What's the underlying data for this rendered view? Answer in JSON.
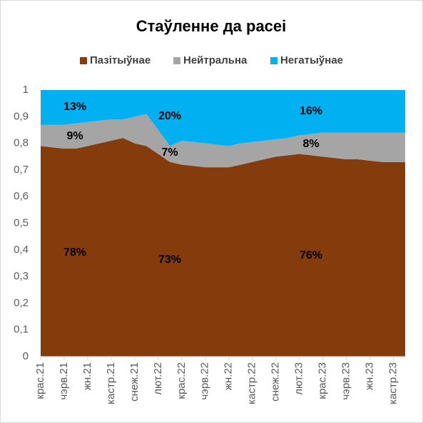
{
  "chart_data": {
    "type": "area",
    "stacked": true,
    "title": "Стаўленне да расеі",
    "categories": [
      "крас.21",
      null,
      "чэрв.21",
      null,
      "жн.21",
      null,
      "кастр.21",
      null,
      "снеж.21",
      null,
      "лют.22",
      null,
      "крас.22",
      null,
      "чэрв.22",
      null,
      "жн.22",
      null,
      "кастр.22",
      null,
      "снеж.22",
      null,
      "лют.23",
      null,
      "крас.23",
      null,
      "чэрв.23",
      null,
      "жн.23",
      null,
      "кастр.23",
      null
    ],
    "series": [
      {
        "name": "Пазітыўнае",
        "color": "#843c0c",
        "values": [
          0.79,
          0.785,
          0.78,
          0.78,
          0.79,
          0.8,
          0.81,
          0.82,
          0.8,
          0.79,
          0.76,
          0.73,
          0.72,
          0.715,
          0.71,
          0.71,
          0.71,
          0.72,
          0.73,
          0.74,
          0.75,
          0.755,
          0.76,
          0.755,
          0.75,
          0.745,
          0.74,
          0.74,
          0.735,
          0.73,
          0.73,
          0.73
        ]
      },
      {
        "name": "Нейтральна",
        "color": "#a5a5a5",
        "values": [
          0.08,
          0.085,
          0.09,
          0.095,
          0.09,
          0.085,
          0.08,
          0.07,
          0.1,
          0.12,
          0.09,
          0.06,
          0.09,
          0.09,
          0.09,
          0.085,
          0.08,
          0.08,
          0.075,
          0.07,
          0.065,
          0.065,
          0.07,
          0.08,
          0.09,
          0.095,
          0.1,
          0.1,
          0.105,
          0.11,
          0.11,
          0.11
        ]
      },
      {
        "name": "Негатыўнае",
        "color": "#00b0f0",
        "values": [
          0.13,
          0.13,
          0.13,
          0.125,
          0.12,
          0.115,
          0.11,
          0.11,
          0.1,
          0.09,
          0.15,
          0.21,
          0.19,
          0.195,
          0.2,
          0.205,
          0.21,
          0.2,
          0.195,
          0.19,
          0.185,
          0.18,
          0.17,
          0.165,
          0.16,
          0.16,
          0.16,
          0.16,
          0.16,
          0.16,
          0.16,
          0.16
        ]
      }
    ],
    "annotations": [
      {
        "text": "13%"
      },
      {
        "text": "9%"
      },
      {
        "text": "78%"
      },
      {
        "text": "20%"
      },
      {
        "text": "7%"
      },
      {
        "text": "73%"
      },
      {
        "text": "16%"
      },
      {
        "text": "8%"
      },
      {
        "text": "76%"
      }
    ],
    "ylim": [
      0,
      1
    ],
    "yticks": [
      0,
      {
        "value": 0.1,
        "label": "0,1"
      },
      {
        "value": 0.2,
        "label": "0,2"
      },
      {
        "value": 0.3,
        "label": "0,3"
      },
      {
        "value": 0.4,
        "label": "0,4"
      },
      {
        "value": 0.5,
        "label": "0,5"
      },
      {
        "value": 0.6,
        "label": "0,6"
      },
      {
        "value": 0.7,
        "label": "0,7"
      },
      {
        "value": 0.8,
        "label": "0,8"
      },
      {
        "value": 0.9,
        "label": "0,9"
      },
      1
    ],
    "legend": "top"
  }
}
